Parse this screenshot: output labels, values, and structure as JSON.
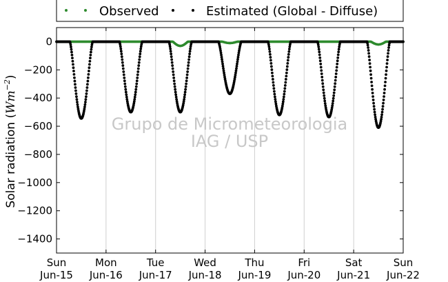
{
  "chart_data": {
    "type": "scatter",
    "ylabel": "Solar radiation",
    "ylabel_unit_base": "W",
    "ylabel_unit_sub": "m",
    "ylabel_unit_exp": "−2",
    "ylim": [
      -1500,
      100
    ],
    "yticks": [
      0,
      -200,
      -400,
      -600,
      -800,
      -1000,
      -1200,
      -1400
    ],
    "xlim": [
      0,
      7
    ],
    "xticks": [
      {
        "x": 0,
        "line1": "Sun",
        "line2": "Jun-15"
      },
      {
        "x": 1,
        "line1": "Mon",
        "line2": "Jun-16"
      },
      {
        "x": 2,
        "line1": "Tue",
        "line2": "Jun-17"
      },
      {
        "x": 3,
        "line1": "Wed",
        "line2": "Jun-18"
      },
      {
        "x": 4,
        "line1": "Thu",
        "line2": "Jun-19"
      },
      {
        "x": 5,
        "line1": "Fri",
        "line2": "Jun-20"
      },
      {
        "x": 6,
        "line1": "Sat",
        "line2": "Jun-21"
      },
      {
        "x": 7,
        "line1": "Sun",
        "line2": "Jun-22"
      }
    ],
    "grid": "vertical",
    "legend_position": "top",
    "watermark": [
      "Grupo de Micrometeorologia",
      "IAG / USP"
    ],
    "series": [
      {
        "name": "Observed",
        "color": "#2e8b2e",
        "marker": "dot",
        "days": [
          {
            "day": 0,
            "dip": 0
          },
          {
            "day": 1,
            "dip": 0
          },
          {
            "day": 2,
            "dip": -60
          },
          {
            "day": 3,
            "dip": -20
          },
          {
            "day": 4,
            "dip": 0
          },
          {
            "day": 5,
            "dip": 0
          },
          {
            "day": 6,
            "dip": -40
          },
          {
            "day": 7,
            "dip": 0
          }
        ]
      },
      {
        "name": "Estimated (Global - Diffuse)",
        "color": "#000000",
        "marker": "dot",
        "days": [
          {
            "day": 0,
            "min": -545
          },
          {
            "day": 1,
            "min": -500
          },
          {
            "day": 2,
            "min": -500
          },
          {
            "day": 3,
            "min": -370
          },
          {
            "day": 4,
            "min": -520
          },
          {
            "day": 5,
            "min": -535
          },
          {
            "day": 6,
            "min": -610
          }
        ]
      }
    ]
  }
}
